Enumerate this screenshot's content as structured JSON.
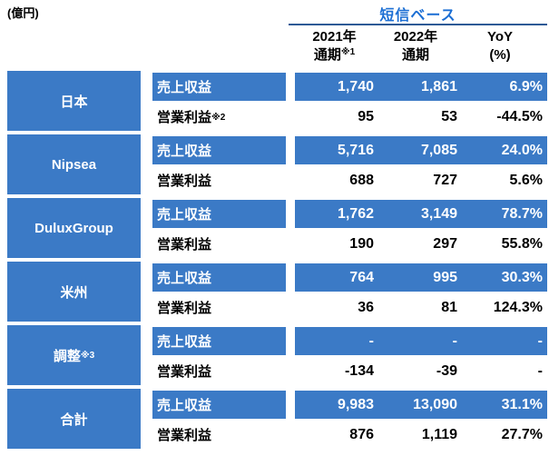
{
  "unit_label": "(億円)",
  "header": {
    "basis_label": "短信ベース",
    "columns": [
      {
        "line1": "2021年",
        "line2": "通期",
        "sup": "※1"
      },
      {
        "line1": "2022年",
        "line2": "通期",
        "sup": ""
      },
      {
        "line1": "YoY",
        "line2": "(%)",
        "sup": ""
      }
    ]
  },
  "metric_labels": {
    "revenue": "売上収益",
    "profit": "営業利益"
  },
  "rows": [
    {
      "segment": "日本",
      "segment_sup": "",
      "profit_sup": "※2",
      "revenue": [
        "1,740",
        "1,861",
        "6.9%"
      ],
      "profit": [
        "95",
        "53",
        "-44.5%"
      ]
    },
    {
      "segment": "Nipsea",
      "segment_sup": "",
      "profit_sup": "",
      "revenue": [
        "5,716",
        "7,085",
        "24.0%"
      ],
      "profit": [
        "688",
        "727",
        "5.6%"
      ]
    },
    {
      "segment": "DuluxGroup",
      "segment_sup": "",
      "profit_sup": "",
      "revenue": [
        "1,762",
        "3,149",
        "78.7%"
      ],
      "profit": [
        "190",
        "297",
        "55.8%"
      ]
    },
    {
      "segment": "米州",
      "segment_sup": "",
      "profit_sup": "",
      "revenue": [
        "764",
        "995",
        "30.3%"
      ],
      "profit": [
        "36",
        "81",
        "124.3%"
      ]
    },
    {
      "segment": "調整",
      "segment_sup": "※3",
      "profit_sup": "",
      "revenue": [
        "-",
        "-",
        "-"
      ],
      "profit": [
        "-134",
        "-39",
        "-"
      ]
    },
    {
      "segment": "合計",
      "segment_sup": "",
      "profit_sup": "",
      "revenue": [
        "9,983",
        "13,090",
        "31.1%"
      ],
      "profit": [
        "876",
        "1,119",
        "27.7%"
      ]
    }
  ],
  "colors": {
    "table_blue": "#3b7ac6",
    "basis_text_blue": "#1b6ed4",
    "underline_navy": "#2d5a96",
    "text_black": "#000000"
  }
}
